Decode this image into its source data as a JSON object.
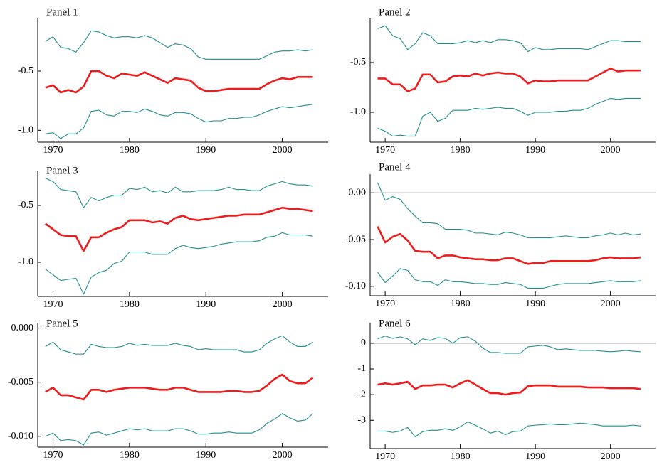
{
  "chart_data": [
    {
      "type": "line",
      "title": "Panel 1",
      "x": [
        1969,
        1970,
        1971,
        1972,
        1973,
        1974,
        1975,
        1976,
        1977,
        1978,
        1979,
        1980,
        1981,
        1982,
        1983,
        1984,
        1985,
        1986,
        1987,
        1988,
        1989,
        1990,
        1991,
        1992,
        1993,
        1994,
        1995,
        1996,
        1997,
        1998,
        1999,
        2000,
        2001,
        2002,
        2003,
        2004
      ],
      "series": [
        {
          "color": "#1f8f8f",
          "values": [
            -0.25,
            -0.21,
            -0.3,
            -0.31,
            -0.34,
            -0.26,
            -0.16,
            -0.17,
            -0.2,
            -0.22,
            -0.21,
            -0.21,
            -0.22,
            -0.2,
            -0.22,
            -0.26,
            -0.3,
            -0.27,
            -0.28,
            -0.31,
            -0.38,
            -0.4,
            -0.4,
            -0.4,
            -0.4,
            -0.4,
            -0.4,
            -0.4,
            -0.4,
            -0.37,
            -0.34,
            -0.33,
            -0.33,
            -0.32,
            -0.33,
            -0.32
          ]
        },
        {
          "color": "#ee1c1c",
          "values": [
            -0.64,
            -0.62,
            -0.68,
            -0.66,
            -0.68,
            -0.63,
            -0.5,
            -0.5,
            -0.54,
            -0.56,
            -0.52,
            -0.53,
            -0.54,
            -0.51,
            -0.54,
            -0.57,
            -0.6,
            -0.56,
            -0.57,
            -0.58,
            -0.64,
            -0.67,
            -0.67,
            -0.66,
            -0.65,
            -0.65,
            -0.65,
            -0.65,
            -0.65,
            -0.61,
            -0.58,
            -0.56,
            -0.57,
            -0.55,
            -0.55,
            -0.55
          ]
        },
        {
          "color": "#1f8f8f",
          "values": [
            -1.03,
            -1.02,
            -1.07,
            -1.03,
            -1.03,
            -0.98,
            -0.84,
            -0.83,
            -0.87,
            -0.88,
            -0.84,
            -0.84,
            -0.85,
            -0.82,
            -0.84,
            -0.87,
            -0.88,
            -0.85,
            -0.85,
            -0.86,
            -0.9,
            -0.93,
            -0.92,
            -0.92,
            -0.9,
            -0.9,
            -0.89,
            -0.89,
            -0.87,
            -0.84,
            -0.82,
            -0.8,
            -0.81,
            -0.8,
            -0.79,
            -0.78
          ]
        }
      ],
      "xlim": [
        1968,
        2006
      ],
      "xticks": [
        1970,
        1980,
        1990,
        2000
      ],
      "ylim": [
        -1.1,
        -0.05
      ],
      "yticks": [
        {
          "value": -1.0,
          "label": "-1.0"
        },
        -0.5
      ]
    },
    {
      "type": "line",
      "title": "Panel 2",
      "x": [
        1969,
        1970,
        1971,
        1972,
        1973,
        1974,
        1975,
        1976,
        1977,
        1978,
        1979,
        1980,
        1981,
        1982,
        1983,
        1984,
        1985,
        1986,
        1987,
        1988,
        1989,
        1990,
        1991,
        1992,
        1993,
        1994,
        1995,
        1996,
        1997,
        1998,
        1999,
        2000,
        2001,
        2002,
        2003,
        2004
      ],
      "series": [
        {
          "color": "#1f8f8f",
          "values": [
            -0.16,
            -0.13,
            -0.23,
            -0.26,
            -0.37,
            -0.31,
            -0.2,
            -0.23,
            -0.31,
            -0.31,
            -0.31,
            -0.3,
            -0.28,
            -0.3,
            -0.28,
            -0.3,
            -0.27,
            -0.27,
            -0.28,
            -0.3,
            -0.39,
            -0.35,
            -0.37,
            -0.37,
            -0.36,
            -0.36,
            -0.36,
            -0.36,
            -0.37,
            -0.34,
            -0.31,
            -0.28,
            -0.28,
            -0.29,
            -0.29,
            -0.29
          ]
        },
        {
          "color": "#ee1c1c",
          "values": [
            -0.66,
            -0.66,
            -0.72,
            -0.72,
            -0.79,
            -0.76,
            -0.62,
            -0.62,
            -0.7,
            -0.69,
            -0.64,
            -0.63,
            -0.64,
            -0.61,
            -0.63,
            -0.61,
            -0.6,
            -0.61,
            -0.61,
            -0.64,
            -0.71,
            -0.68,
            -0.69,
            -0.69,
            -0.68,
            -0.68,
            -0.68,
            -0.68,
            -0.68,
            -0.64,
            -0.6,
            -0.56,
            -0.59,
            -0.58,
            -0.58,
            -0.58
          ]
        },
        {
          "color": "#1f8f8f",
          "values": [
            -1.16,
            -1.19,
            -1.24,
            -1.23,
            -1.24,
            -1.24,
            -1.04,
            -1.0,
            -1.09,
            -1.06,
            -0.98,
            -0.98,
            -0.98,
            -0.96,
            -0.97,
            -0.96,
            -0.95,
            -0.96,
            -0.96,
            -0.99,
            -1.03,
            -1.0,
            -1.0,
            -1.0,
            -0.99,
            -0.99,
            -0.98,
            -0.98,
            -0.96,
            -0.92,
            -0.89,
            -0.86,
            -0.87,
            -0.86,
            -0.86,
            -0.86
          ]
        }
      ],
      "xlim": [
        1968,
        2006
      ],
      "xticks": [
        1970,
        1980,
        1990,
        2000
      ],
      "ylim": [
        -1.3,
        -0.05
      ],
      "yticks": [
        {
          "value": -1.0,
          "label": "-1.0"
        },
        -0.5
      ]
    },
    {
      "type": "line",
      "title": "Panel 3",
      "x": [
        1969,
        1970,
        1971,
        1972,
        1973,
        1974,
        1975,
        1976,
        1977,
        1978,
        1979,
        1980,
        1981,
        1982,
        1983,
        1984,
        1985,
        1986,
        1987,
        1988,
        1989,
        1990,
        1991,
        1992,
        1993,
        1994,
        1995,
        1996,
        1997,
        1998,
        1999,
        2000,
        2001,
        2002,
        2003,
        2004
      ],
      "series": [
        {
          "color": "#1f8f8f",
          "values": [
            -0.26,
            -0.29,
            -0.36,
            -0.37,
            -0.38,
            -0.52,
            -0.43,
            -0.46,
            -0.43,
            -0.41,
            -0.41,
            -0.35,
            -0.36,
            -0.34,
            -0.38,
            -0.37,
            -0.39,
            -0.34,
            -0.38,
            -0.38,
            -0.37,
            -0.37,
            -0.37,
            -0.36,
            -0.34,
            -0.36,
            -0.36,
            -0.37,
            -0.37,
            -0.33,
            -0.31,
            -0.29,
            -0.31,
            -0.32,
            -0.32,
            -0.33
          ]
        },
        {
          "color": "#ee1c1c",
          "values": [
            -0.66,
            -0.71,
            -0.76,
            -0.77,
            -0.77,
            -0.9,
            -0.78,
            -0.78,
            -0.74,
            -0.71,
            -0.69,
            -0.63,
            -0.63,
            -0.63,
            -0.65,
            -0.64,
            -0.66,
            -0.61,
            -0.59,
            -0.62,
            -0.63,
            -0.62,
            -0.61,
            -0.6,
            -0.59,
            -0.59,
            -0.58,
            -0.58,
            -0.58,
            -0.56,
            -0.54,
            -0.52,
            -0.53,
            -0.53,
            -0.54,
            -0.55
          ]
        },
        {
          "color": "#1f8f8f",
          "values": [
            -1.06,
            -1.11,
            -1.16,
            -1.15,
            -1.14,
            -1.28,
            -1.13,
            -1.09,
            -1.07,
            -1.01,
            -0.99,
            -0.91,
            -0.91,
            -0.91,
            -0.93,
            -0.93,
            -0.93,
            -0.88,
            -0.85,
            -0.87,
            -0.88,
            -0.87,
            -0.86,
            -0.84,
            -0.83,
            -0.82,
            -0.82,
            -0.82,
            -0.81,
            -0.78,
            -0.77,
            -0.74,
            -0.76,
            -0.76,
            -0.76,
            -0.77
          ]
        }
      ],
      "xlim": [
        1968,
        2006
      ],
      "xticks": [
        1970,
        1980,
        1990,
        2000
      ],
      "ylim": [
        -1.3,
        -0.2
      ],
      "yticks": [
        {
          "value": -1.0,
          "label": "-1.0"
        },
        -0.5
      ]
    },
    {
      "type": "line",
      "title": "Panel 4",
      "x": [
        1969,
        1970,
        1971,
        1972,
        1973,
        1974,
        1975,
        1976,
        1977,
        1978,
        1979,
        1980,
        1981,
        1982,
        1983,
        1984,
        1985,
        1986,
        1987,
        1988,
        1989,
        1990,
        1991,
        1992,
        1993,
        1994,
        1995,
        1996,
        1997,
        1998,
        1999,
        2000,
        2001,
        2002,
        2003,
        2004
      ],
      "series": [
        {
          "color": "#1f8f8f",
          "values": [
            0.011,
            -0.008,
            -0.004,
            -0.007,
            -0.017,
            -0.025,
            -0.032,
            -0.032,
            -0.033,
            -0.039,
            -0.039,
            -0.039,
            -0.04,
            -0.043,
            -0.043,
            -0.044,
            -0.045,
            -0.042,
            -0.043,
            -0.045,
            -0.048,
            -0.048,
            -0.048,
            -0.048,
            -0.047,
            -0.046,
            -0.047,
            -0.048,
            -0.048,
            -0.046,
            -0.045,
            -0.043,
            -0.045,
            -0.043,
            -0.045,
            -0.044
          ]
        },
        {
          "color": "#ee1c1c",
          "values": [
            -0.036,
            -0.053,
            -0.047,
            -0.044,
            -0.051,
            -0.062,
            -0.063,
            -0.063,
            -0.07,
            -0.067,
            -0.067,
            -0.069,
            -0.07,
            -0.071,
            -0.071,
            -0.072,
            -0.072,
            -0.07,
            -0.07,
            -0.073,
            -0.076,
            -0.075,
            -0.075,
            -0.073,
            -0.073,
            -0.073,
            -0.073,
            -0.073,
            -0.073,
            -0.072,
            -0.07,
            -0.069,
            -0.07,
            -0.07,
            -0.07,
            -0.069
          ]
        },
        {
          "color": "#1f8f8f",
          "values": [
            -0.085,
            -0.096,
            -0.089,
            -0.081,
            -0.083,
            -0.093,
            -0.095,
            -0.095,
            -0.099,
            -0.093,
            -0.095,
            -0.095,
            -0.096,
            -0.097,
            -0.097,
            -0.098,
            -0.098,
            -0.096,
            -0.097,
            -0.098,
            -0.102,
            -0.102,
            -0.102,
            -0.1,
            -0.098,
            -0.097,
            -0.097,
            -0.097,
            -0.097,
            -0.096,
            -0.095,
            -0.094,
            -0.095,
            -0.095,
            -0.095,
            -0.094
          ]
        }
      ],
      "xlim": [
        1968,
        2006
      ],
      "xticks": [
        1970,
        1980,
        1990,
        2000
      ],
      "ylim": [
        -0.11,
        0.02
      ],
      "yticks": [
        {
          "value": -0.1,
          "label": "-0.10"
        },
        {
          "value": -0.05,
          "label": "-0.05"
        },
        {
          "value": 0,
          "label": "0.00"
        }
      ],
      "hline": 0
    },
    {
      "type": "line",
      "title": "Panel 5",
      "x": [
        1969,
        1970,
        1971,
        1972,
        1973,
        1974,
        1975,
        1976,
        1977,
        1978,
        1979,
        1980,
        1981,
        1982,
        1983,
        1984,
        1985,
        1986,
        1987,
        1988,
        1989,
        1990,
        1991,
        1992,
        1993,
        1994,
        1995,
        1996,
        1997,
        1998,
        1999,
        2000,
        2001,
        2002,
        2003,
        2004
      ],
      "series": [
        {
          "color": "#1f8f8f",
          "values": [
            -0.0017,
            -0.0013,
            -0.002,
            -0.0022,
            -0.0024,
            -0.0024,
            -0.0015,
            -0.0017,
            -0.0018,
            -0.0018,
            -0.0017,
            -0.0014,
            -0.0016,
            -0.0015,
            -0.0016,
            -0.0016,
            -0.0016,
            -0.0014,
            -0.0016,
            -0.0017,
            -0.002,
            -0.0019,
            -0.002,
            -0.002,
            -0.002,
            -0.002,
            -0.0022,
            -0.0022,
            -0.002,
            -0.0014,
            -0.001,
            -0.0007,
            -0.0013,
            -0.0017,
            -0.0017,
            -0.0013
          ]
        },
        {
          "color": "#ee1c1c",
          "values": [
            -0.0059,
            -0.0055,
            -0.0062,
            -0.0062,
            -0.0064,
            -0.0066,
            -0.0057,
            -0.0057,
            -0.0059,
            -0.0057,
            -0.0056,
            -0.0055,
            -0.0055,
            -0.0055,
            -0.0056,
            -0.0057,
            -0.0057,
            -0.0055,
            -0.0055,
            -0.0057,
            -0.0059,
            -0.0059,
            -0.0059,
            -0.0059,
            -0.0058,
            -0.0058,
            -0.0059,
            -0.0059,
            -0.0058,
            -0.0053,
            -0.0047,
            -0.0043,
            -0.0049,
            -0.0051,
            -0.0051,
            -0.0046
          ]
        },
        {
          "color": "#1f8f8f",
          "values": [
            -0.01,
            -0.0097,
            -0.0104,
            -0.0103,
            -0.0104,
            -0.0108,
            -0.0097,
            -0.0096,
            -0.0099,
            -0.0097,
            -0.0095,
            -0.0093,
            -0.0094,
            -0.0093,
            -0.0095,
            -0.0095,
            -0.0095,
            -0.0093,
            -0.0093,
            -0.0095,
            -0.0098,
            -0.0098,
            -0.0097,
            -0.0097,
            -0.0096,
            -0.0097,
            -0.0097,
            -0.0097,
            -0.0094,
            -0.0088,
            -0.0084,
            -0.0079,
            -0.0083,
            -0.0086,
            -0.0085,
            -0.0079
          ]
        }
      ],
      "xlim": [
        1968,
        2006
      ],
      "xticks": [
        1970,
        1980,
        1990,
        2000
      ],
      "ylim": [
        -0.011,
        0.0005
      ],
      "yticks": [
        {
          "value": -0.01,
          "label": "-0.010"
        },
        {
          "value": -0.005,
          "label": "-0.005"
        },
        {
          "value": 0,
          "label": "0.000"
        }
      ]
    },
    {
      "type": "line",
      "title": "Panel 6",
      "x": [
        1969,
        1970,
        1971,
        1972,
        1973,
        1974,
        1975,
        1976,
        1977,
        1978,
        1979,
        1980,
        1981,
        1982,
        1983,
        1984,
        1985,
        1986,
        1987,
        1988,
        1989,
        1990,
        1991,
        1992,
        1993,
        1994,
        1995,
        1996,
        1997,
        1998,
        1999,
        2000,
        2001,
        2002,
        2003,
        2004
      ],
      "series": [
        {
          "color": "#1f8f8f",
          "values": [
            0.17,
            0.28,
            0.19,
            0.25,
            0.17,
            -0.06,
            0.17,
            0.11,
            0.22,
            0.19,
            0,
            0.22,
            0.25,
            0.08,
            -0.19,
            -0.36,
            -0.36,
            -0.39,
            -0.39,
            -0.39,
            -0.14,
            -0.11,
            -0.08,
            -0.14,
            -0.25,
            -0.22,
            -0.25,
            -0.28,
            -0.28,
            -0.28,
            -0.31,
            -0.33,
            -0.31,
            -0.28,
            -0.31,
            -0.33
          ]
        },
        {
          "color": "#ee1c1c",
          "values": [
            -1.61,
            -1.56,
            -1.61,
            -1.56,
            -1.5,
            -1.78,
            -1.64,
            -1.64,
            -1.61,
            -1.61,
            -1.72,
            -1.56,
            -1.44,
            -1.61,
            -1.78,
            -1.94,
            -1.94,
            -2.0,
            -1.94,
            -1.92,
            -1.67,
            -1.64,
            -1.64,
            -1.64,
            -1.69,
            -1.69,
            -1.69,
            -1.69,
            -1.72,
            -1.72,
            -1.72,
            -1.75,
            -1.75,
            -1.75,
            -1.75,
            -1.78
          ]
        },
        {
          "color": "#1f8f8f",
          "values": [
            -3.42,
            -3.42,
            -3.47,
            -3.42,
            -3.28,
            -3.64,
            -3.44,
            -3.39,
            -3.39,
            -3.33,
            -3.39,
            -3.25,
            -3.06,
            -3.19,
            -3.33,
            -3.5,
            -3.42,
            -3.56,
            -3.44,
            -3.42,
            -3.22,
            -3.19,
            -3.17,
            -3.14,
            -3.17,
            -3.17,
            -3.14,
            -3.11,
            -3.14,
            -3.17,
            -3.22,
            -3.22,
            -3.22,
            -3.22,
            -3.19,
            -3.22
          ]
        }
      ],
      "xlim": [
        1968,
        2006
      ],
      "xticks": [
        1970,
        1980,
        1990,
        2000
      ],
      "ylim": [
        -4.1,
        0.8
      ],
      "yticks": [
        -3,
        -2,
        -1,
        0
      ],
      "hline": 0
    }
  ]
}
